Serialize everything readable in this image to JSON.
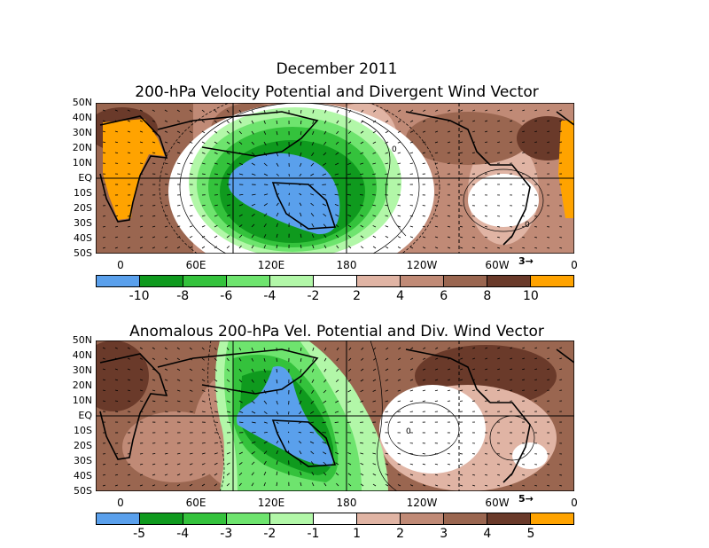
{
  "title": "December 2011",
  "panels": [
    {
      "title": "200-hPa Velocity Potential and Divergent Wind Vector",
      "lat_labels": [
        "50N",
        "40N",
        "30N",
        "20N",
        "10N",
        "EQ",
        "10S",
        "20S",
        "30S",
        "40S",
        "50S"
      ],
      "lon_labels": [
        "0",
        "60E",
        "120E",
        "180",
        "120W",
        "60W",
        "0"
      ],
      "reference_vector": "3",
      "colorbar_labels": [
        "-10",
        "-8",
        "-6",
        "-4",
        "-2",
        "2",
        "4",
        "6",
        "8",
        "10"
      ],
      "contour_labels": [
        "0",
        "0"
      ]
    },
    {
      "title": "Anomalous 200-hPa Vel. Potential and Div. Wind Vector",
      "lat_labels": [
        "50N",
        "40N",
        "30N",
        "20N",
        "10N",
        "EQ",
        "10S",
        "20S",
        "30S",
        "40S",
        "50S"
      ],
      "lon_labels": [
        "0",
        "60E",
        "120E",
        "180",
        "120W",
        "60W",
        "0"
      ],
      "reference_vector": "5",
      "colorbar_labels": [
        "-5",
        "-4",
        "-3",
        "-2",
        "-1",
        "1",
        "2",
        "3",
        "4",
        "5"
      ],
      "contour_labels": [
        "0"
      ]
    }
  ],
  "colors": {
    "blue": "#5aa0ec",
    "green_dark": "#0f9a1e",
    "green_mid": "#34c23c",
    "green": "#6ee46e",
    "green_light": "#b2f7a8",
    "white": "#ffffff",
    "brown_light": "#e0b4a4",
    "brown_mid": "#c08a76",
    "brown": "#9a6650",
    "brown_dark": "#6a3a2a",
    "orange": "#ffa300"
  },
  "colorbar_colors": [
    "blue",
    "green_dark",
    "green_mid",
    "green",
    "green_light",
    "white",
    "brown_light",
    "brown_mid",
    "brown",
    "brown_dark",
    "orange"
  ]
}
